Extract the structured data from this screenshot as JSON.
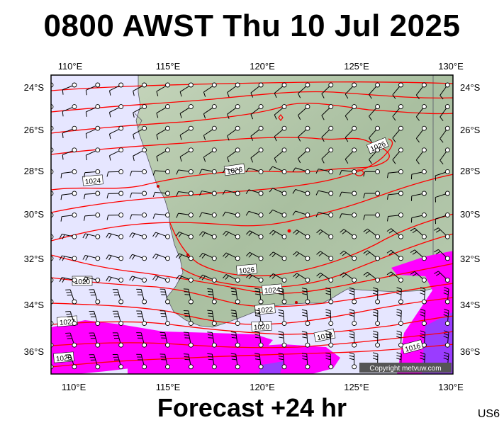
{
  "header": {
    "title": "0800 AWST Thu 10 Jul 2025"
  },
  "footer": {
    "forecast": "Forecast +24 hr",
    "code": "US6"
  },
  "map": {
    "lon_ticks": [
      "110°E",
      "115°E",
      "120°E",
      "125°E",
      "130°E"
    ],
    "lat_ticks": [
      "24°S",
      "26°S",
      "28°S",
      "30°S",
      "32°S",
      "34°S",
      "36°S"
    ],
    "isobar_labels": [
      "1026",
      "1026",
      "1024",
      "1026",
      "1024",
      "1022",
      "1020",
      "1020",
      "1022",
      "1020",
      "1018",
      "1016"
    ],
    "copyright": "Copyright metvuw.com",
    "colors": {
      "ocean": "#e6e6ff",
      "land": "#b4c8aa",
      "isobar": "#ff0000",
      "high_wind": "#ff00ff",
      "very_high_wind": "#9a3cff"
    }
  }
}
